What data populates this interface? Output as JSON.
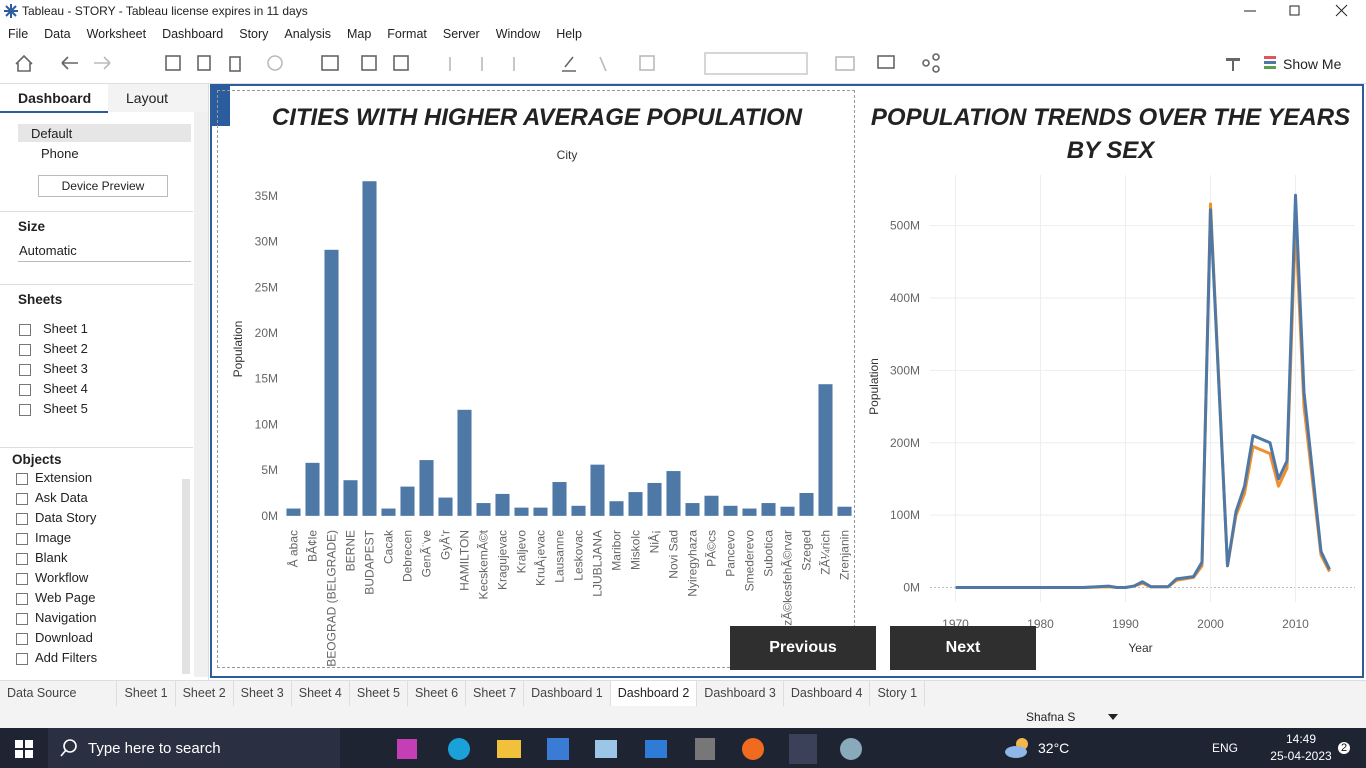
{
  "window": {
    "title": "Tableau - STORY - Tableau license expires in 11 days"
  },
  "menu": [
    "File",
    "Data",
    "Worksheet",
    "Dashboard",
    "Story",
    "Analysis",
    "Map",
    "Format",
    "Server",
    "Window",
    "Help"
  ],
  "toolbar": {
    "show_me": "Show Me"
  },
  "side_panel": {
    "tabs": [
      "Dashboard",
      "Layout"
    ],
    "devices": [
      "Default",
      "Phone"
    ],
    "device_preview": "Device Preview",
    "size_heading": "Size",
    "size_value": "Automatic",
    "sheets_heading": "Sheets",
    "sheets": [
      "Sheet 1",
      "Sheet 2",
      "Sheet 3",
      "Sheet 4",
      "Sheet 5"
    ],
    "objects_heading": "Objects",
    "objects": [
      "Extension",
      "Ask Data",
      "Data Story",
      "Image",
      "Blank",
      "Workflow",
      "Web Page",
      "Navigation",
      "Download",
      "Add Filters"
    ]
  },
  "chart_data": [
    {
      "type": "bar",
      "title": "CITIES WITH HIGHER AVERAGE POPULATION",
      "x_label": "City",
      "y_label": "Population",
      "categories": [
        "Å abac",
        "BÃ¢le",
        "BEOGRAD (BELGRADE)",
        "BERNE",
        "BUDAPEST",
        "Cacak",
        "Debrecen",
        "GenÃ¨ve",
        "GyÅ‘r",
        "HAMILTON",
        "KecskemÃ©t",
        "Kragujevac",
        "Kraljevo",
        "KruÅ¡evac",
        "Lausanne",
        "Leskovac",
        "LJUBLJANA",
        "Maribor",
        "Miskolc",
        "NiÅ¡",
        "Novi Sad",
        "Nyiregyhaza",
        "PÃ©cs",
        "Pancevo",
        "Smederevo",
        "Subotica",
        "SzÃ©kesfehÃ©rvar",
        "Szeged",
        "ZÃ¼rich",
        "Zrenjanin"
      ],
      "values": [
        800000,
        5800000,
        29100000,
        3900000,
        36600000,
        800000,
        3200000,
        6100000,
        2000000,
        11600000,
        1400000,
        2400000,
        900000,
        900000,
        3700000,
        1100000,
        5600000,
        1600000,
        2600000,
        3600000,
        4900000,
        1400000,
        2200000,
        1100000,
        800000,
        1400000,
        1000000,
        2500000,
        14400000,
        1000000
      ],
      "color": "#4e79a7",
      "ylim": [
        -1000000,
        37500000
      ],
      "yticks": [
        {
          "value": 0,
          "label": "0M"
        },
        {
          "value": 5000000,
          "label": "5M"
        },
        {
          "value": 10000000,
          "label": "10M"
        },
        {
          "value": 15000000,
          "label": "15M"
        },
        {
          "value": 20000000,
          "label": "20M"
        },
        {
          "value": 25000000,
          "label": "25M"
        },
        {
          "value": 30000000,
          "label": "30M"
        },
        {
          "value": 35000000,
          "label": "35M"
        }
      ],
      "grid": false
    },
    {
      "type": "line",
      "title": "POPULATION TRENDS OVER THE YEARS BY SEX",
      "x_label": "Year",
      "y_label": "Population",
      "x": [
        1970,
        1975,
        1980,
        1985,
        1988,
        1989,
        1990,
        1991,
        1992,
        1993,
        1994,
        1995,
        1996,
        1998,
        1999,
        2000,
        2002,
        2003,
        2004,
        2005,
        2007,
        2008,
        2009,
        2010,
        2011,
        2013,
        2014
      ],
      "series": [
        {
          "color": "#f28e2b",
          "values": [
            0,
            0,
            0,
            0,
            1000000,
            0,
            0,
            2000000,
            6000000,
            1000000,
            1000000,
            1000000,
            10000000,
            14000000,
            30000000,
            530000000,
            30000000,
            100000000,
            130000000,
            195000000,
            185000000,
            140000000,
            165000000,
            505000000,
            250000000,
            45000000,
            22000000
          ]
        },
        {
          "color": "#4e79a7",
          "values": [
            0,
            0,
            0,
            0,
            2000000,
            0,
            0,
            2000000,
            8000000,
            1000000,
            1000000,
            1000000,
            12000000,
            15000000,
            35000000,
            522000000,
            30000000,
            105000000,
            140000000,
            210000000,
            200000000,
            150000000,
            175000000,
            542000000,
            270000000,
            50000000,
            25000000
          ]
        }
      ],
      "xlim": [
        1967,
        2017
      ],
      "xticks": [
        1970,
        1980,
        1990,
        2000,
        2010
      ],
      "ylim": [
        -20000000,
        570000000
      ],
      "yticks": [
        {
          "value": 0,
          "label": "0M"
        },
        {
          "value": 100000000,
          "label": "100M"
        },
        {
          "value": 200000000,
          "label": "200M"
        },
        {
          "value": 300000000,
          "label": "300M"
        },
        {
          "value": 400000000,
          "label": "400M"
        },
        {
          "value": 500000000,
          "label": "500M"
        }
      ],
      "grid": true
    }
  ],
  "story_nav": {
    "previous": "Previous",
    "next": "Next"
  },
  "tabs": [
    "Data Source",
    "Sheet 1",
    "Sheet 2",
    "Sheet 3",
    "Sheet 4",
    "Sheet 5",
    "Sheet 6",
    "Sheet 7",
    "Dashboard 1",
    "Dashboard 2",
    "Dashboard 3",
    "Dashboard 4",
    "Story 1"
  ],
  "status": {
    "user": "Shafna S"
  },
  "taskbar": {
    "search": "Type here to search",
    "weather": "32°C",
    "language": "ENG",
    "time": "14:49",
    "date": "25-04-2023",
    "notifications": "2"
  }
}
